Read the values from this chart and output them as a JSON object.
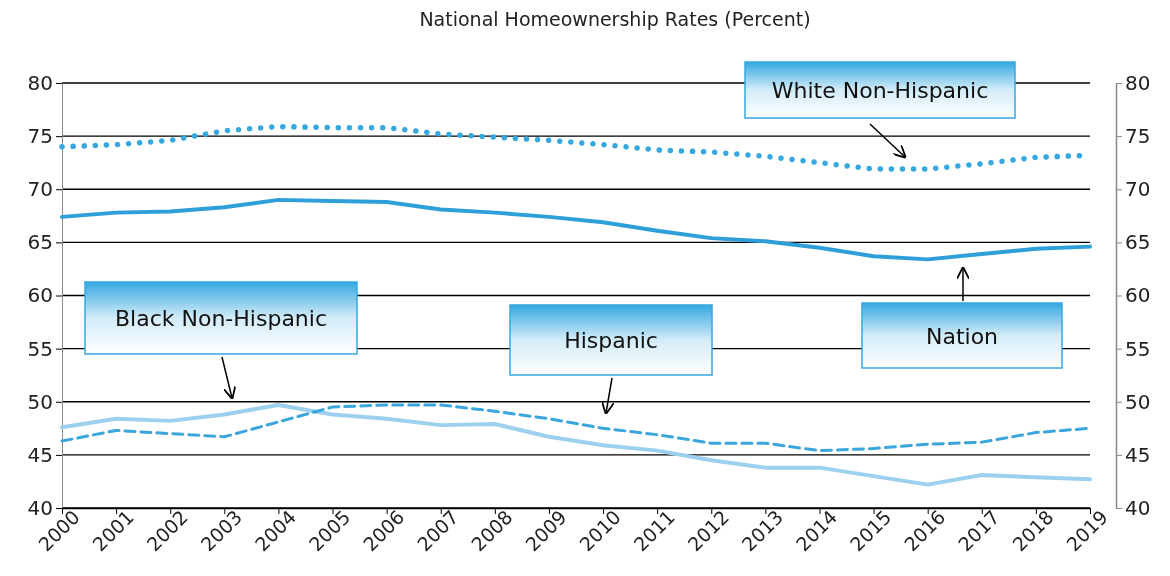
{
  "chart_data": {
    "type": "line",
    "title": "National Homeownership Rates (Percent)",
    "x": [
      2000,
      2001,
      2002,
      2003,
      2004,
      2005,
      2006,
      2007,
      2008,
      2009,
      2010,
      2011,
      2012,
      2013,
      2014,
      2015,
      2016,
      2017,
      2018,
      2019
    ],
    "xlim": [
      2000,
      2019
    ],
    "xticks": [
      2000,
      2001,
      2002,
      2003,
      2004,
      2005,
      2006,
      2007,
      2008,
      2009,
      2010,
      2011,
      2012,
      2013,
      2014,
      2015,
      2016,
      2017,
      2018,
      2019
    ],
    "ylim": [
      40,
      80
    ],
    "yticks": [
      40,
      45,
      50,
      55,
      60,
      65,
      70,
      75,
      80
    ],
    "y2lim": [
      40,
      80
    ],
    "y2ticks": [
      40,
      45,
      50,
      55,
      60,
      65,
      70,
      75,
      80
    ],
    "grid": "y",
    "series": [
      {
        "name": "White Non-Hispanic",
        "color": "#35a8e0",
        "line_style": "dotted",
        "values": [
          74.0,
          74.2,
          74.6,
          75.5,
          75.9,
          75.8,
          75.8,
          75.2,
          74.9,
          74.6,
          74.2,
          73.7,
          73.5,
          73.1,
          72.5,
          71.9,
          71.9,
          72.4,
          73.0,
          73.2
        ]
      },
      {
        "name": "Nation",
        "color": "#2e9fd8",
        "line_style": "solid",
        "values": [
          67.4,
          67.8,
          67.9,
          68.3,
          69.0,
          68.9,
          68.8,
          68.1,
          67.8,
          67.4,
          66.9,
          66.1,
          65.4,
          65.1,
          64.5,
          63.7,
          63.4,
          63.9,
          64.4,
          64.6
        ]
      },
      {
        "name": "Black Non-Hispanic",
        "color": "#9dd0ef",
        "line_style": "solid",
        "values": [
          47.6,
          48.4,
          48.2,
          48.8,
          49.7,
          48.8,
          48.4,
          47.8,
          47.9,
          46.7,
          45.9,
          45.4,
          44.5,
          43.8,
          43.8,
          43.0,
          42.2,
          43.1,
          42.9,
          42.7
        ]
      },
      {
        "name": "Hispanic",
        "color": "#3aa6dd",
        "line_style": "dashed",
        "values": [
          46.3,
          47.3,
          47.0,
          46.7,
          48.1,
          49.5,
          49.7,
          49.7,
          49.1,
          48.4,
          47.5,
          46.9,
          46.1,
          46.1,
          45.4,
          45.6,
          46.0,
          46.2,
          47.1,
          47.5
        ]
      }
    ]
  }
}
